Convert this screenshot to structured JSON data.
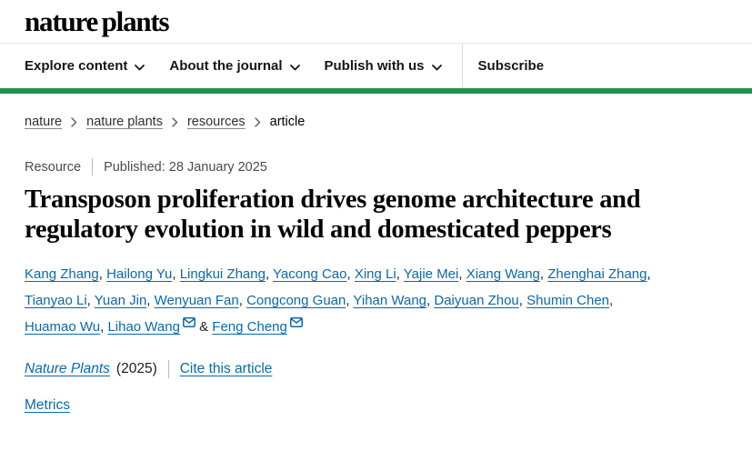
{
  "header": {
    "logo": "nature plants",
    "nav_items": [
      {
        "label": "Explore content",
        "dropdown": true
      },
      {
        "label": "About the journal",
        "dropdown": true
      },
      {
        "label": "Publish with us",
        "dropdown": true
      },
      {
        "label": "Subscribe",
        "dropdown": false
      }
    ]
  },
  "breadcrumb": [
    "nature",
    "nature plants",
    "resources",
    "article"
  ],
  "article": {
    "type_label": "Resource",
    "published": "Published: 28 January 2025",
    "title": "Transposon proliferation drives genome architecture and regulatory evolution in wild and domesticated peppers",
    "authors": [
      {
        "name": "Kang Zhang"
      },
      {
        "name": "Hailong Yu"
      },
      {
        "name": "Lingkui Zhang"
      },
      {
        "name": "Yacong Cao"
      },
      {
        "name": "Xing Li"
      },
      {
        "name": "Yajie Mei"
      },
      {
        "name": "Xiang Wang"
      },
      {
        "name": "Zhenghai Zhang"
      },
      {
        "name": "Tianyao Li"
      },
      {
        "name": "Yuan Jin"
      },
      {
        "name": "Wenyuan Fan"
      },
      {
        "name": "Congcong Guan"
      },
      {
        "name": "Yihan Wang"
      },
      {
        "name": "Daiyuan Zhou"
      },
      {
        "name": "Shumin Chen"
      },
      {
        "name": "Huamao Wu"
      },
      {
        "name": "Lihao Wang",
        "email": true
      },
      {
        "name": "Feng Cheng",
        "email": true
      }
    ],
    "journal": "Nature Plants",
    "year": "(2025)",
    "cite_label": "Cite this article",
    "metrics_label": "Metrics"
  },
  "colors": {
    "link_blue": "#0a69aa",
    "brand_green": "#209249"
  }
}
